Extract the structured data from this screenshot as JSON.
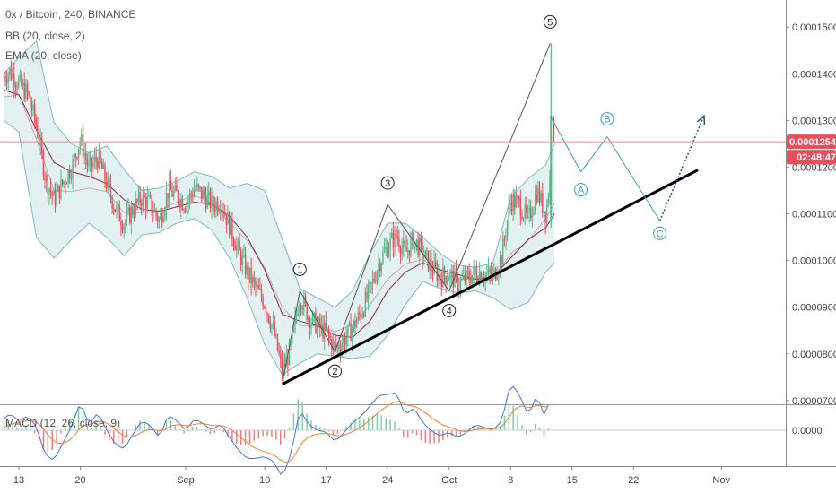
{
  "legend": {
    "symbol": "0x / Bitcoin, 240, BINANCE",
    "bb": "BB (20, close, 2)",
    "ema": "EMA (20, close)",
    "macd": "MACD (12, 26, close, 9)"
  },
  "price_badge": "0.00012543",
  "countdown_badge": "02:48:47",
  "colors": {
    "up": "#53b987",
    "down": "#eb4d5c",
    "band_fill": "#e3f1f3",
    "band_line": "#7fb8c4",
    "ema": "#8a2a3a",
    "trendline": "#000000",
    "wave_proj": "#3a9bb5",
    "price_line": "#f08a8a",
    "macd_line": "#3c78d8",
    "signal_line": "#e8843c"
  },
  "chart_data": {
    "type": "candlestick",
    "y_ticks": [
      "0.00015000",
      "0.00014000",
      "0.00013000",
      "0.00012000",
      "0.00011000",
      "0.00010000",
      "0.00009000",
      "0.00008000",
      "0.00007000"
    ],
    "ylim": [
      6.92e-05,
      0.0001558
    ],
    "x_ticks": [
      {
        "label": "13",
        "day": 13
      },
      {
        "label": "20",
        "day": 20
      },
      {
        "label": "Sep",
        "day": 32
      },
      {
        "label": "10",
        "day": 41
      },
      {
        "label": "17",
        "day": 48
      },
      {
        "label": "24",
        "day": 55
      },
      {
        "label": "Oct",
        "day": 62
      },
      {
        "label": "8",
        "day": 69
      },
      {
        "label": "15",
        "day": 76
      },
      {
        "label": "22",
        "day": 83
      },
      {
        "label": "Nov",
        "day": 93
      }
    ],
    "current_price": 0.00012543,
    "price_path": [
      [
        11.3,
        0.0001395
      ],
      [
        12,
        0.0001405
      ],
      [
        13,
        0.000138
      ],
      [
        14,
        0.0001355
      ],
      [
        15,
        0.000129
      ],
      [
        16,
        0.000118
      ],
      [
        17,
        0.000113
      ],
      [
        18,
        0.0001165
      ],
      [
        19,
        0.00012
      ],
      [
        20,
        0.000126
      ],
      [
        21,
        0.0001195
      ],
      [
        22,
        0.000122
      ],
      [
        23,
        0.0001165
      ],
      [
        24,
        0.000111
      ],
      [
        25,
        0.000108
      ],
      [
        26,
        0.000111
      ],
      [
        27,
        0.0001135
      ],
      [
        28,
        0.000112
      ],
      [
        29,
        0.0001085
      ],
      [
        30,
        0.000115
      ],
      [
        31,
        0.000114
      ],
      [
        32,
        0.000112
      ],
      [
        33,
        0.0001155
      ],
      [
        34,
        0.000114
      ],
      [
        35,
        0.000112
      ],
      [
        36,
        0.0001125
      ],
      [
        37,
        0.0001075
      ],
      [
        38,
        0.000102
      ],
      [
        39,
        9.75e-05
      ],
      [
        40,
        9.4e-05
      ],
      [
        41,
        9.1e-05
      ],
      [
        42,
        8.5e-05
      ],
      [
        43,
        7.6e-05
      ],
      [
        44,
        8.15e-05
      ],
      [
        45,
        9.25e-05
      ],
      [
        46,
        8.8e-05
      ],
      [
        47,
        8.6e-05
      ],
      [
        48,
        8.45e-05
      ],
      [
        49,
        8.1e-05
      ],
      [
        50,
        8.3e-05
      ],
      [
        51,
        8.55e-05
      ],
      [
        52,
        8.9e-05
      ],
      [
        53,
        9.35e-05
      ],
      [
        54,
        9.95e-05
      ],
      [
        55,
        0.000103
      ],
      [
        56,
        0.0001055
      ],
      [
        57,
        0.0001015
      ],
      [
        58,
        0.0001045
      ],
      [
        59,
        0.0001015
      ],
      [
        60,
        9.85e-05
      ],
      [
        61,
        9.65e-05
      ],
      [
        62,
        9.7e-05
      ],
      [
        63,
        9.5e-05
      ],
      [
        64,
        9.6e-05
      ],
      [
        65,
        9.75e-05
      ],
      [
        66,
        9.7e-05
      ],
      [
        67,
        9.65e-05
      ],
      [
        68,
        0.000101
      ],
      [
        69,
        0.000113
      ],
      [
        70,
        0.000112
      ],
      [
        71,
        0.0001085
      ],
      [
        72,
        0.000115
      ],
      [
        73,
        0.00011
      ],
      [
        74,
        0.0001255
      ]
    ],
    "bands": [
      [
        11.3,
        0.00014,
        0.00013
      ],
      [
        13,
        0.0001435,
        0.0001275
      ],
      [
        15,
        0.000147,
        0.000105
      ],
      [
        17,
        0.0001295,
        0.0001005
      ],
      [
        19,
        0.000125,
        0.0001045
      ],
      [
        21,
        0.000123,
        0.000108
      ],
      [
        23,
        0.0001245,
        0.000105
      ],
      [
        25,
        0.0001195,
        0.000101
      ],
      [
        27,
        0.000115,
        0.0001055
      ],
      [
        29,
        0.0001155,
        0.000106
      ],
      [
        31,
        0.000117,
        0.000108
      ],
      [
        33,
        0.000119,
        0.000109
      ],
      [
        35,
        0.000118,
        0.0001065
      ],
      [
        37,
        0.0001155,
        0.0001005
      ],
      [
        39,
        0.0001165,
        9.2e-05
      ],
      [
        41,
        0.000115,
        8.2e-05
      ],
      [
        43,
        0.0001045,
        7.55e-05
      ],
      [
        45,
        9.4e-05,
        7.8e-05
      ],
      [
        47,
        9.2e-05,
        8e-05
      ],
      [
        49,
        9e-05,
        7.95e-05
      ],
      [
        51,
        9.35e-05,
        7.9e-05
      ],
      [
        53,
        0.0001015,
        7.95e-05
      ],
      [
        55,
        0.000108,
        8.4e-05
      ],
      [
        57,
        0.000108,
        9.05e-05
      ],
      [
        59,
        0.000105,
        9.55e-05
      ],
      [
        61,
        0.0001015,
        9.4e-05
      ],
      [
        63,
        9.9e-05,
        9.3e-05
      ],
      [
        65,
        9.85e-05,
        9.35e-05
      ],
      [
        67,
        9.95e-05,
        9.2e-05
      ],
      [
        69,
        0.0001135,
        8.95e-05
      ],
      [
        71,
        0.0001175,
        9.1e-05
      ],
      [
        73,
        0.0001205,
        9.75e-05
      ],
      [
        74,
        0.000125,
        9.95e-05
      ]
    ],
    "ema": [
      [
        11.3,
        0.0001365
      ],
      [
        13,
        0.0001355
      ],
      [
        15,
        0.000128
      ],
      [
        17,
        0.000121
      ],
      [
        19,
        0.000119
      ],
      [
        21,
        0.000118
      ],
      [
        23,
        0.0001165
      ],
      [
        25,
        0.000113
      ],
      [
        27,
        0.000111
      ],
      [
        29,
        0.0001105
      ],
      [
        31,
        0.0001115
      ],
      [
        33,
        0.0001125
      ],
      [
        35,
        0.000112
      ],
      [
        37,
        0.0001095
      ],
      [
        39,
        0.000105
      ],
      [
        41,
        9.8e-05
      ],
      [
        43,
        8.85e-05
      ],
      [
        45,
        8.7e-05
      ],
      [
        47,
        8.6e-05
      ],
      [
        49,
        8.4e-05
      ],
      [
        51,
        8.35e-05
      ],
      [
        53,
        8.7e-05
      ],
      [
        55,
        9.35e-05
      ],
      [
        57,
        9.75e-05
      ],
      [
        59,
        9.95e-05
      ],
      [
        61,
        9.8e-05
      ],
      [
        63,
        9.7e-05
      ],
      [
        65,
        9.6e-05
      ],
      [
        67,
        9.65e-05
      ],
      [
        69,
        0.0001005
      ],
      [
        71,
        0.0001045
      ],
      [
        73,
        0.000107
      ],
      [
        74,
        0.00011
      ]
    ],
    "trendline": {
      "start": [
        43,
        7.35e-05
      ],
      "end": [
        84,
        0.000114
      ]
    },
    "elliott_impulse": [
      {
        "label": "1",
        "day": 45,
        "price": 9.35e-05
      },
      {
        "label": "2",
        "day": 49,
        "price": 8.05e-05
      },
      {
        "label": "3",
        "day": 55,
        "price": 0.000112
      },
      {
        "label": "4",
        "day": 62,
        "price": 9.35e-05
      },
      {
        "label": "5",
        "day": 73.5,
        "price": 0.0001465
      }
    ],
    "elliott_start": {
      "day": 43,
      "price": 7.35e-05
    },
    "projection": [
      {
        "label": "",
        "day": 73.5,
        "price": 0.000131
      },
      {
        "label": "A",
        "day": 77,
        "price": 0.000119
      },
      {
        "label": "B",
        "day": 80,
        "price": 0.0001265
      },
      {
        "label": "C",
        "day": 86,
        "price": 0.0001085
      }
    ],
    "projection_arrow": {
      "from": [
        86,
        0.0001085
      ],
      "to": [
        89.5,
        0.000131
      ]
    },
    "macd_zero_label": "0.0000"
  }
}
